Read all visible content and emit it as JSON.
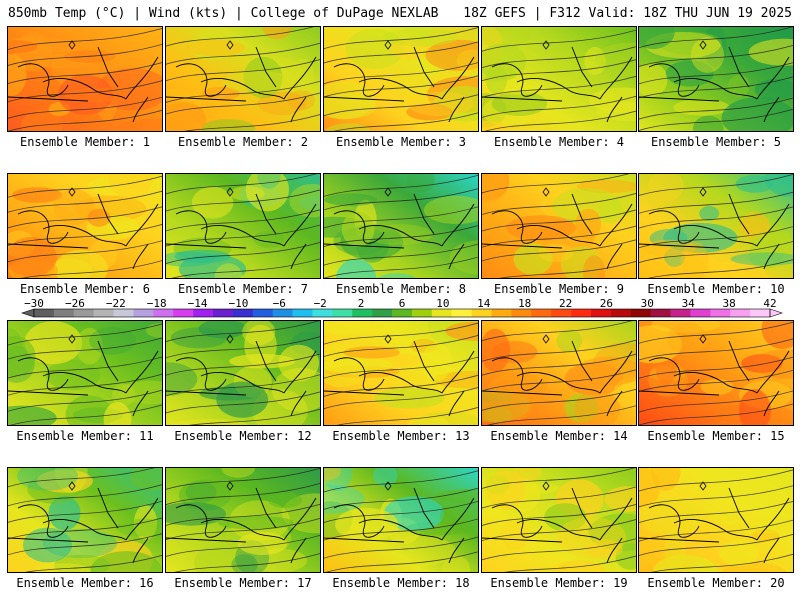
{
  "header": {
    "left": "850mb Temp (°C) | Wind (kts) | College of DuPage NEXLAB",
    "right": "18Z GEFS | F312 Valid: 18Z THU JUN 19 2025"
  },
  "colorbar": {
    "labels": [
      "-30",
      "-26",
      "-22",
      "-18",
      "-14",
      "-10",
      "-6",
      "-2",
      "2",
      "6",
      "10",
      "14",
      "18",
      "22",
      "26",
      "30",
      "34",
      "38",
      "42"
    ],
    "colors": [
      "#5f5f5f",
      "#7f7f7f",
      "#9a9a9a",
      "#b4b4b4",
      "#c8c8d8",
      "#b7a0e0",
      "#cf6ff0",
      "#d63cf0",
      "#a020f0",
      "#6a1fd0",
      "#3a2fd0",
      "#1f5fe0",
      "#1f8fe6",
      "#1fbfef",
      "#3fdfe0",
      "#3fe0a8",
      "#1fc060",
      "#2da048",
      "#5cb820",
      "#9fd010",
      "#e6e61e",
      "#fff03c",
      "#ffd21e",
      "#ffaa10",
      "#ff8a10",
      "#ff6a10",
      "#ff4a10",
      "#ff2a10",
      "#e01010",
      "#b80a0a",
      "#900606",
      "#a01040",
      "#c8208a",
      "#e040d0",
      "#f070e8",
      "#f8a0f0",
      "#fcc8f8"
    ]
  },
  "members": [
    {
      "label": "Ensemble Member: 1",
      "palette": [
        "#ff5a1e",
        "#ff7a14",
        "#ff9a14",
        "#ffb414"
      ]
    },
    {
      "label": "Ensemble Member: 2",
      "palette": [
        "#ffa014",
        "#ffbe14",
        "#d8e01e",
        "#8ccc1e"
      ]
    },
    {
      "label": "Ensemble Member: 3",
      "palette": [
        "#ff8a14",
        "#ffd21e",
        "#e6e61e",
        "#c8e01e"
      ]
    },
    {
      "label": "Ensemble Member: 4",
      "palette": [
        "#ffd21e",
        "#e6e61e",
        "#b4d81e",
        "#6cc01e"
      ]
    },
    {
      "label": "Ensemble Member: 5",
      "palette": [
        "#e6e61e",
        "#8ccc1e",
        "#3aa83a",
        "#1f9a4a"
      ]
    },
    {
      "label": "Ensemble Member: 6",
      "palette": [
        "#ff7a14",
        "#ffaa14",
        "#ffd21e",
        "#f0e61e"
      ]
    },
    {
      "label": "Ensemble Member: 7",
      "palette": [
        "#e6e61e",
        "#b4d81e",
        "#5cb820",
        "#2dbf8c"
      ]
    },
    {
      "label": "Ensemble Member: 8",
      "palette": [
        "#e6e61e",
        "#a8d41e",
        "#3aa83a",
        "#2ad6c8"
      ]
    },
    {
      "label": "Ensemble Member: 9",
      "palette": [
        "#ff8a14",
        "#ffaa14",
        "#ffd21e",
        "#c8e01e"
      ]
    },
    {
      "label": "Ensemble Member: 10",
      "palette": [
        "#ffbe14",
        "#ffd21e",
        "#b4d81e",
        "#2dbf8c"
      ]
    },
    {
      "label": "Ensemble Member: 11",
      "palette": [
        "#f0e61e",
        "#b4d81e",
        "#6cc01e",
        "#3aa83a"
      ]
    },
    {
      "label": "Ensemble Member: 12",
      "palette": [
        "#e6e61e",
        "#a8d41e",
        "#5cb820",
        "#2d9a48"
      ]
    },
    {
      "label": "Ensemble Member: 13",
      "palette": [
        "#ff9a14",
        "#ffd21e",
        "#f0e61e",
        "#c8e01e"
      ]
    },
    {
      "label": "Ensemble Member: 14",
      "palette": [
        "#ff6a14",
        "#ff9a14",
        "#ffd21e",
        "#a8d41e"
      ]
    },
    {
      "label": "Ensemble Member: 15",
      "palette": [
        "#ff4a14",
        "#ff7a14",
        "#ffaa14",
        "#ffd21e"
      ]
    },
    {
      "label": "Ensemble Member: 16",
      "palette": [
        "#ffd21e",
        "#e6e61e",
        "#6cc01e",
        "#2dbf8c"
      ]
    },
    {
      "label": "Ensemble Member: 17",
      "palette": [
        "#e6e61e",
        "#b4d81e",
        "#5cb820",
        "#2d9a48"
      ]
    },
    {
      "label": "Ensemble Member: 18",
      "palette": [
        "#ffbe14",
        "#e6e61e",
        "#5cb820",
        "#2dd6c8"
      ]
    },
    {
      "label": "Ensemble Member: 19",
      "palette": [
        "#ffd21e",
        "#f0e61e",
        "#c8e01e",
        "#8ccc1e"
      ]
    },
    {
      "label": "Ensemble Member: 20",
      "palette": [
        "#ffbe14",
        "#ffd21e",
        "#f0e61e",
        "#e6e61e"
      ]
    }
  ]
}
